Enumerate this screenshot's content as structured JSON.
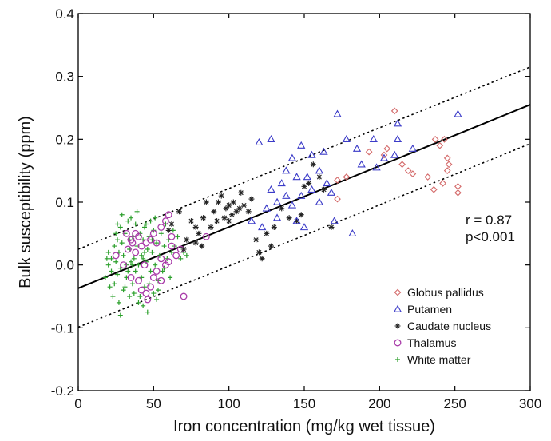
{
  "chart_data": {
    "type": "scatter",
    "xlabel": "Iron concentration (mg/kg wet tissue)",
    "ylabel": "Bulk susceptibility (ppm)",
    "xlim": [
      0,
      300
    ],
    "ylim": [
      -0.2,
      0.4
    ],
    "x_ticks": [
      "0",
      "50",
      "100",
      "150",
      "200",
      "250",
      "300"
    ],
    "y_ticks": [
      "-0.2",
      "-0.1",
      "0.0",
      "0.1",
      "0.2",
      "0.3",
      "0.4"
    ],
    "grid": false,
    "legend_position": "bottom-right",
    "annotations": {
      "r": "r = 0.87",
      "p": "p<0.001"
    },
    "fit_line": {
      "x": [
        0,
        300
      ],
      "y": [
        -0.037,
        0.255
      ],
      "style": "solid"
    },
    "confidence_bands": [
      {
        "x": [
          0,
          300
        ],
        "y": [
          0.025,
          0.315
        ],
        "style": "dotted"
      },
      {
        "x": [
          0,
          300
        ],
        "y": [
          -0.099,
          0.193
        ],
        "style": "dotted"
      }
    ],
    "series": [
      {
        "name": "Globus pallidus",
        "marker": "diamond",
        "color": "#d46a6a",
        "points": [
          [
            210,
            0.245
          ],
          [
            172,
            0.135
          ],
          [
            193,
            0.18
          ],
          [
            203,
            0.175
          ],
          [
            215,
            0.16
          ],
          [
            219,
            0.15
          ],
          [
            222,
            0.145
          ],
          [
            232,
            0.14
          ],
          [
            237,
            0.2
          ],
          [
            240,
            0.19
          ],
          [
            243,
            0.2
          ],
          [
            245,
            0.17
          ],
          [
            246,
            0.16
          ],
          [
            245,
            0.15
          ],
          [
            236,
            0.12
          ],
          [
            252,
            0.125
          ],
          [
            252,
            0.115
          ],
          [
            178,
            0.14
          ],
          [
            172,
            0.105
          ],
          [
            205,
            0.185
          ],
          [
            242,
            0.13
          ]
        ]
      },
      {
        "name": "Putamen",
        "marker": "triangle",
        "color": "#3b3bc8",
        "points": [
          [
            252,
            0.24
          ],
          [
            212,
            0.225
          ],
          [
            196,
            0.2
          ],
          [
            222,
            0.185
          ],
          [
            212,
            0.2
          ],
          [
            185,
            0.185
          ],
          [
            203,
            0.17
          ],
          [
            210,
            0.175
          ],
          [
            172,
            0.24
          ],
          [
            178,
            0.2
          ],
          [
            163,
            0.18
          ],
          [
            155,
            0.175
          ],
          [
            148,
            0.19
          ],
          [
            142,
            0.17
          ],
          [
            128,
            0.2
          ],
          [
            120,
            0.195
          ],
          [
            138,
            0.15
          ],
          [
            145,
            0.14
          ],
          [
            152,
            0.14
          ],
          [
            160,
            0.15
          ],
          [
            165,
            0.13
          ],
          [
            155,
            0.12
          ],
          [
            148,
            0.11
          ],
          [
            138,
            0.11
          ],
          [
            132,
            0.1
          ],
          [
            128,
            0.12
          ],
          [
            125,
            0.09
          ],
          [
            122,
            0.06
          ],
          [
            132,
            0.075
          ],
          [
            145,
            0.07
          ],
          [
            150,
            0.06
          ],
          [
            170,
            0.07
          ],
          [
            182,
            0.05
          ],
          [
            160,
            0.1
          ],
          [
            142,
            0.095
          ],
          [
            168,
            0.115
          ],
          [
            188,
            0.16
          ],
          [
            198,
            0.155
          ],
          [
            135,
            0.13
          ],
          [
            115,
            0.07
          ]
        ]
      },
      {
        "name": "Caudate nucleus",
        "marker": "star",
        "color": "#222222",
        "points": [
          [
            60,
            0.055
          ],
          [
            62,
            0.065
          ],
          [
            67,
            0.085
          ],
          [
            72,
            0.04
          ],
          [
            75,
            0.07
          ],
          [
            78,
            0.06
          ],
          [
            80,
            0.05
          ],
          [
            83,
            0.075
          ],
          [
            85,
            0.1
          ],
          [
            88,
            0.06
          ],
          [
            90,
            0.085
          ],
          [
            92,
            0.07
          ],
          [
            95,
            0.11
          ],
          [
            97,
            0.075
          ],
          [
            98,
            0.09
          ],
          [
            100,
            0.07
          ],
          [
            102,
            0.08
          ],
          [
            103,
            0.1
          ],
          [
            105,
            0.085
          ],
          [
            107,
            0.09
          ],
          [
            110,
            0.095
          ],
          [
            115,
            0.105
          ],
          [
            118,
            0.04
          ],
          [
            120,
            0.02
          ],
          [
            122,
            0.01
          ],
          [
            125,
            0.05
          ],
          [
            128,
            0.03
          ],
          [
            130,
            0.06
          ],
          [
            135,
            0.09
          ],
          [
            140,
            0.075
          ],
          [
            145,
            0.07
          ],
          [
            148,
            0.08
          ],
          [
            150,
            0.125
          ],
          [
            153,
            0.13
          ],
          [
            156,
            0.16
          ],
          [
            160,
            0.14
          ],
          [
            163,
            0.12
          ],
          [
            168,
            0.06
          ],
          [
            78,
            0.035
          ],
          [
            70,
            0.025
          ],
          [
            113,
            0.085
          ],
          [
            93,
            0.1
          ],
          [
            108,
            0.115
          ],
          [
            82,
            0.03
          ],
          [
            100,
            0.095
          ]
        ]
      },
      {
        "name": "Thalamus",
        "marker": "circle",
        "color": "#a83aa8",
        "points": [
          [
            25,
            0.015
          ],
          [
            30,
            0.0
          ],
          [
            33,
            0.025
          ],
          [
            35,
            0.04
          ],
          [
            38,
            0.05
          ],
          [
            40,
            0.045
          ],
          [
            42,
            0.03
          ],
          [
            45,
            0.035
          ],
          [
            48,
            0.04
          ],
          [
            50,
            0.05
          ],
          [
            52,
            0.035
          ],
          [
            55,
            0.06
          ],
          [
            58,
            0.07
          ],
          [
            60,
            0.08
          ],
          [
            62,
            0.045
          ],
          [
            65,
            0.015
          ],
          [
            68,
            0.025
          ],
          [
            35,
            -0.02
          ],
          [
            40,
            -0.025
          ],
          [
            42,
            -0.04
          ],
          [
            45,
            -0.045
          ],
          [
            48,
            -0.035
          ],
          [
            50,
            -0.02
          ],
          [
            52,
            -0.01
          ],
          [
            55,
            -0.025
          ],
          [
            58,
            0.0
          ],
          [
            60,
            0.005
          ],
          [
            70,
            -0.05
          ],
          [
            38,
            0.02
          ],
          [
            44,
            0.0
          ],
          [
            85,
            0.045
          ],
          [
            55,
            0.01
          ],
          [
            32,
            0.05
          ],
          [
            46,
            -0.055
          ],
          [
            62,
            0.03
          ],
          [
            36,
            0.035
          ]
        ]
      },
      {
        "name": "White matter",
        "marker": "plus",
        "color": "#2ca02c",
        "points": [
          [
            18,
            -0.02
          ],
          [
            20,
            0.0
          ],
          [
            20,
            0.02
          ],
          [
            22,
            -0.01
          ],
          [
            22,
            0.01
          ],
          [
            24,
            0.03
          ],
          [
            24,
            -0.03
          ],
          [
            25,
            0.005
          ],
          [
            26,
            -0.015
          ],
          [
            26,
            0.04
          ],
          [
            27,
            0.02
          ],
          [
            28,
            -0.005
          ],
          [
            28,
            0.06
          ],
          [
            29,
            0.035
          ],
          [
            30,
            -0.04
          ],
          [
            30,
            0.015
          ],
          [
            31,
            0.05
          ],
          [
            32,
            -0.02
          ],
          [
            32,
            0.0
          ],
          [
            33,
            0.07
          ],
          [
            34,
            0.025
          ],
          [
            34,
            -0.05
          ],
          [
            35,
            0.005
          ],
          [
            36,
            0.045
          ],
          [
            36,
            -0.03
          ],
          [
            37,
            0.01
          ],
          [
            38,
            0.065
          ],
          [
            38,
            -0.01
          ],
          [
            39,
            0.03
          ],
          [
            40,
            -0.06
          ],
          [
            40,
            0.0
          ],
          [
            41,
            0.05
          ],
          [
            42,
            0.015
          ],
          [
            42,
            -0.02
          ],
          [
            43,
            0.04
          ],
          [
            44,
            -0.035
          ],
          [
            44,
            0.06
          ],
          [
            45,
            0.005
          ],
          [
            46,
            0.025
          ],
          [
            46,
            -0.075
          ],
          [
            47,
            0.045
          ],
          [
            48,
            -0.01
          ],
          [
            48,
            0.07
          ],
          [
            49,
            0.02
          ],
          [
            50,
            -0.045
          ],
          [
            50,
            0.055
          ],
          [
            51,
            0.0
          ],
          [
            52,
            0.035
          ],
          [
            53,
            -0.025
          ],
          [
            54,
            0.015
          ],
          [
            55,
            0.05
          ],
          [
            56,
            -0.01
          ],
          [
            57,
            0.03
          ],
          [
            58,
            0.065
          ],
          [
            59,
            0.01
          ],
          [
            60,
            0.04
          ],
          [
            61,
            -0.02
          ],
          [
            62,
            0.02
          ],
          [
            63,
            0.055
          ],
          [
            64,
            0.03
          ],
          [
            66,
            0.045
          ],
          [
            68,
            0.01
          ],
          [
            70,
            0.02
          ],
          [
            72,
            0.015
          ],
          [
            23,
            -0.05
          ],
          [
            25,
            0.05
          ],
          [
            27,
            -0.06
          ],
          [
            29,
            0.08
          ],
          [
            31,
            -0.035
          ],
          [
            33,
            -0.01
          ],
          [
            35,
            0.075
          ],
          [
            37,
            -0.045
          ],
          [
            39,
            0.085
          ],
          [
            41,
            -0.05
          ],
          [
            43,
            0.01
          ],
          [
            45,
            0.065
          ],
          [
            47,
            -0.03
          ],
          [
            49,
            0.04
          ],
          [
            51,
            0.075
          ],
          [
            53,
            -0.04
          ],
          [
            19,
            0.01
          ],
          [
            21,
            -0.035
          ],
          [
            26,
            0.065
          ],
          [
            34,
            0.04
          ],
          [
            43,
            -0.065
          ],
          [
            52,
            -0.055
          ],
          [
            28,
            -0.08
          ],
          [
            36,
            0.0
          ],
          [
            44,
            0.02
          ],
          [
            57,
            -0.005
          ]
        ]
      }
    ]
  }
}
